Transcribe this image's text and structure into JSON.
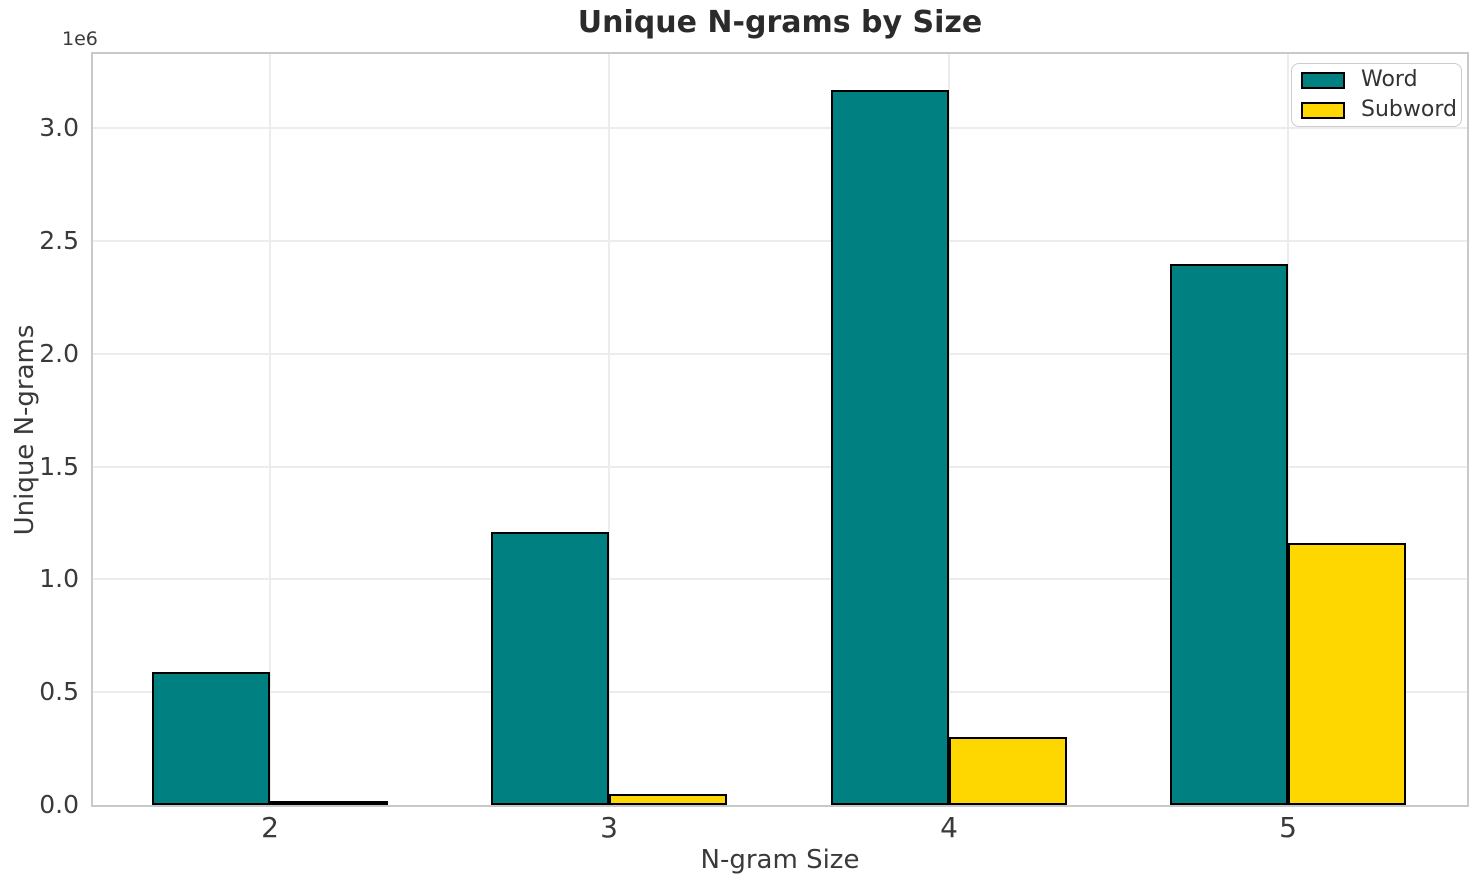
{
  "chart_data": {
    "type": "bar",
    "title": "Unique N-grams by Size",
    "xlabel": "N-gram Size",
    "ylabel": "Unique N-grams",
    "categories": [
      "2",
      "3",
      "4",
      "5"
    ],
    "series": [
      {
        "name": "Word",
        "color": "#008080",
        "values": [
          590000,
          1210000,
          3170000,
          2400000
        ]
      },
      {
        "name": "Subword",
        "color": "#FFD700",
        "values": [
          2000,
          50000,
          300000,
          1160000
        ]
      }
    ],
    "bar_edge_color": "#000000",
    "y_axis": {
      "offset_label": "1e6",
      "ticks": [
        "0.0",
        "0.5",
        "1.0",
        "1.5",
        "2.0",
        "2.5",
        "3.0"
      ],
      "tick_values": [
        0,
        500000,
        1000000,
        1500000,
        2000000,
        2500000,
        3000000
      ],
      "ylim": [
        0,
        3330000
      ]
    },
    "x_axis": {
      "tick_values": [
        2,
        3,
        4,
        5
      ]
    },
    "legend": {
      "position": "upper right",
      "entries": [
        "Word",
        "Subword"
      ]
    },
    "grid": true,
    "grid_color": "#ececec",
    "background": "#ffffff",
    "text_color": "#3a3a3a"
  }
}
